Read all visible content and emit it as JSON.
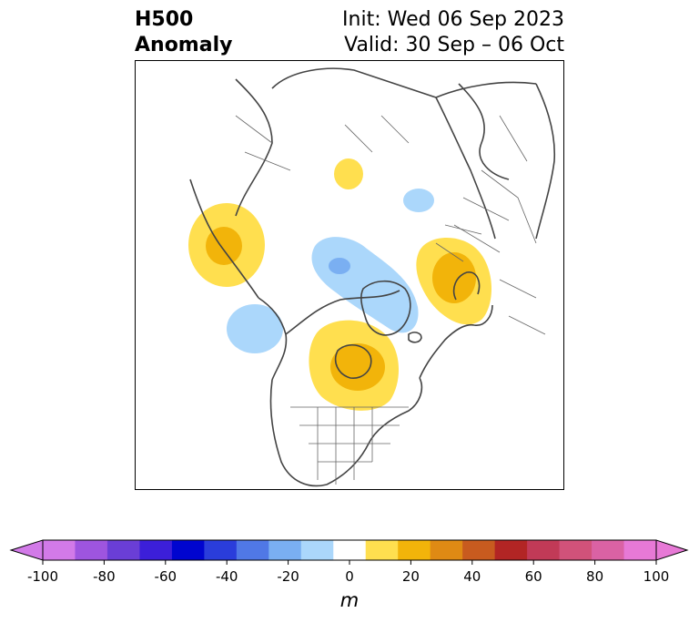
{
  "title": {
    "left_line1": "H500",
    "left_line2": "Anomaly",
    "right_line1": "Init: Wed 06 Sep 2023",
    "right_line2": "Valid: 30 Sep – 06 Oct"
  },
  "map": {
    "projection": "north-polar-stereographic",
    "field": "500 hPa geopotential height anomaly",
    "anomalies": [
      {
        "region": "Kara Sea / northwest Siberia",
        "sign": "positive",
        "max_level": 10
      },
      {
        "region": "Central Siberia",
        "sign": "negative",
        "max_level": -10
      },
      {
        "region": "North Pacific / Bering",
        "sign": "positive",
        "max_level": 20
      },
      {
        "region": "Northeast Pacific",
        "sign": "negative",
        "max_level": -20
      },
      {
        "region": "Arctic Ocean / Beaufort",
        "sign": "negative",
        "max_level": -20
      },
      {
        "region": "Central Canada / Hudson Bay",
        "sign": "positive",
        "max_level": 20
      },
      {
        "region": "Northern Europe / Scandinavia",
        "sign": "positive",
        "max_level": 20
      }
    ]
  },
  "colorbar": {
    "levels": [
      -100,
      -90,
      -80,
      -70,
      -60,
      -50,
      -40,
      -30,
      -20,
      -10,
      10,
      20,
      30,
      40,
      50,
      60,
      70,
      80,
      90,
      100
    ],
    "colors": [
      "#d27ae8",
      "#9e55df",
      "#6a3ed6",
      "#3c1fd9",
      "#0005cf",
      "#2a3ddb",
      "#5078e6",
      "#7aaff2",
      "#abd7fb",
      "#ffffff",
      "#ffdf4f",
      "#f2b40a",
      "#df8a14",
      "#c85b1f",
      "#b22524",
      "#c13a57",
      "#d1527a",
      "#da62a4",
      "#e779d6"
    ],
    "extend_min_color": "#d27ae8",
    "extend_max_color": "#e779d6",
    "tick_labels": [
      "-100",
      "-80",
      "-60",
      "-40",
      "-20",
      "0",
      "20",
      "40",
      "60",
      "80",
      "100"
    ],
    "label": "m"
  }
}
